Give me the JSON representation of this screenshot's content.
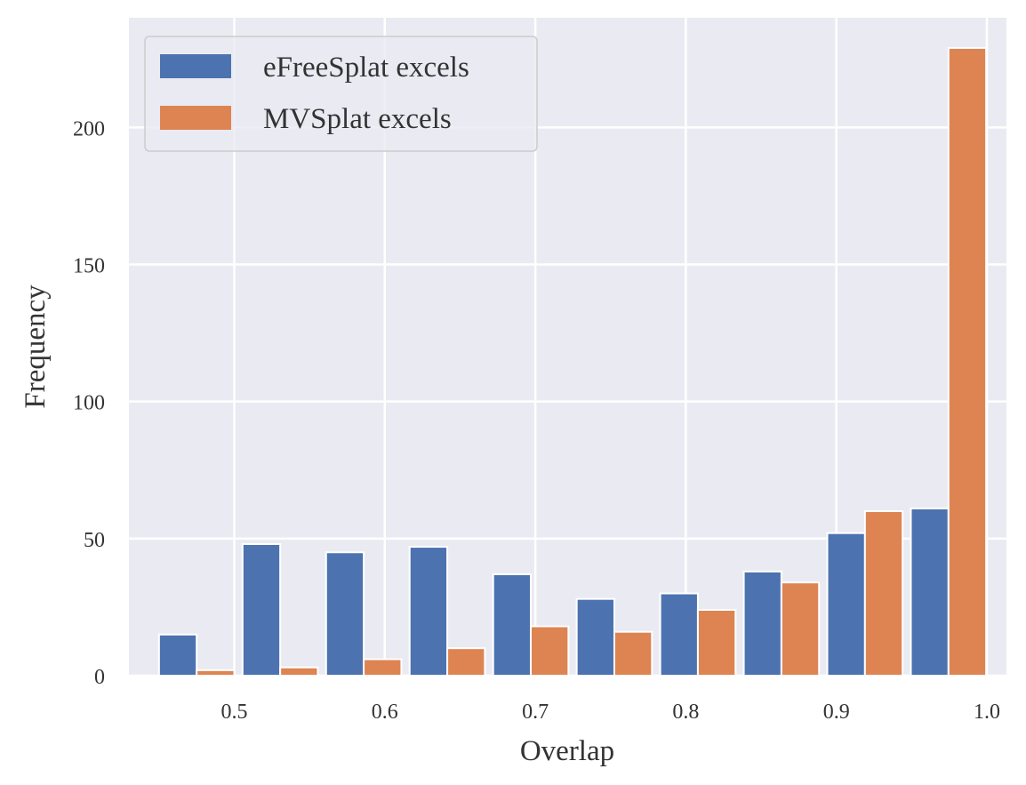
{
  "chart_data": {
    "type": "bar",
    "title": "",
    "xlabel": "Overlap",
    "ylabel": "Frequency",
    "xlim": [
      0.43,
      1.013
    ],
    "ylim": [
      0,
      240
    ],
    "xticks": [
      0.5,
      0.6,
      0.7,
      0.8,
      0.9,
      1.0
    ],
    "xtick_labels": [
      "0.5",
      "0.6",
      "0.7",
      "0.8",
      "0.9",
      "1.0"
    ],
    "yticks": [
      0,
      50,
      100,
      150,
      200
    ],
    "ytick_labels": [
      "0",
      "50",
      "100",
      "150",
      "200"
    ],
    "grid": true,
    "legend_position": "top-left",
    "bins": [
      [
        0.45,
        0.5
      ],
      [
        0.5055,
        0.5555
      ],
      [
        0.561,
        0.611
      ],
      [
        0.6165,
        0.6665
      ],
      [
        0.672,
        0.722
      ],
      [
        0.7275,
        0.7775
      ],
      [
        0.783,
        0.833
      ],
      [
        0.8385,
        0.8885
      ],
      [
        0.894,
        0.944
      ],
      [
        0.9495,
        0.9995
      ]
    ],
    "series": [
      {
        "name": "eFreeSplat excels",
        "color": "#4c72b0",
        "values": [
          15,
          48,
          45,
          47,
          37,
          28,
          30,
          38,
          52,
          61
        ]
      },
      {
        "name": "MVSplat excels",
        "color": "#dd8452",
        "values": [
          2,
          3,
          6,
          10,
          18,
          16,
          24,
          34,
          60,
          229
        ]
      }
    ]
  }
}
